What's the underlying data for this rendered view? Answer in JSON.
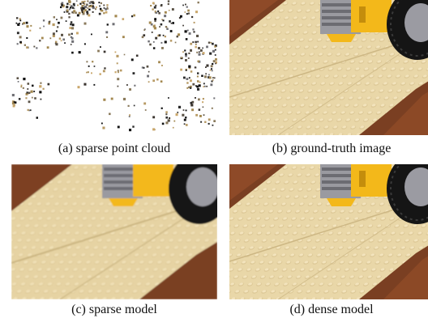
{
  "figure": {
    "panels": [
      {
        "id": "a",
        "caption": "(a) sparse point cloud",
        "kind": "points"
      },
      {
        "id": "b",
        "caption": "(b) ground-truth image",
        "kind": "render"
      },
      {
        "id": "c",
        "caption": "(c) sparse model",
        "kind": "render-blurry"
      },
      {
        "id": "d",
        "caption": "(d) dense model",
        "kind": "render"
      }
    ]
  },
  "colors": {
    "background": "#ffffff",
    "plate": "#e9d7a8",
    "plate_stud": "#d8c18e",
    "brick_brown": "#7a3f22",
    "yellow": "#f3b81a",
    "gray": "#9a9aa0",
    "tire": "#151515"
  }
}
